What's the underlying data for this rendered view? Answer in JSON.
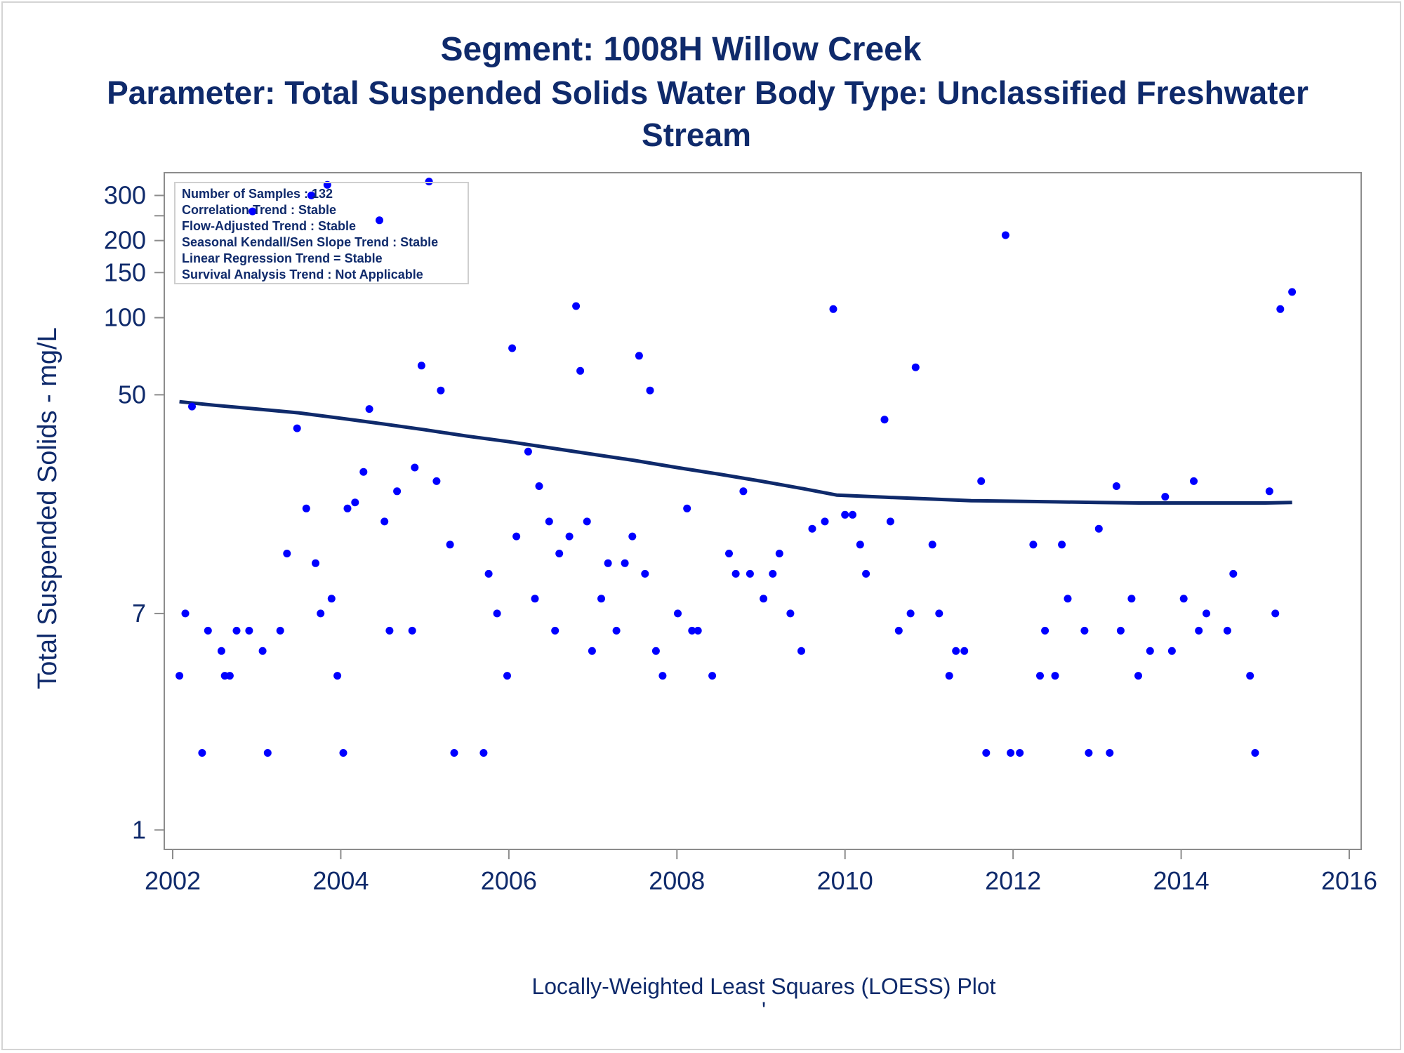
{
  "title_line1": "Segment: 1008H  Willow Creek",
  "title_line2": "Parameter: Total Suspended Solids   Water Body Type: Unclassified Freshwater",
  "title_line3": "Stream",
  "footnote": "Locally-Weighted Least Squares (LOESS) Plot",
  "footnote_mark": "'",
  "info_box": [
    "Number of Samples : 132",
    "Correlation Trend : Stable",
    "Flow-Adjusted Trend : Stable",
    "Seasonal Kendall/Sen Slope Trend : Stable",
    "Linear Regression Trend = Stable",
    "Survival Analysis Trend : Not Applicable"
  ],
  "colors": {
    "text": "#0f2a6b",
    "points": "#0000ff",
    "line": "#0f2a6b",
    "axis": "#8c8c8c"
  },
  "chart_data": {
    "type": "scatter",
    "ylabel": "Total Suspended Solids - mg/L",
    "xlabel": "",
    "y_scale": "log",
    "xlim": [
      2002,
      2016
    ],
    "ylim": [
      0.9,
      350
    ],
    "x_ticks": [
      2002,
      2004,
      2006,
      2008,
      2010,
      2012,
      2014,
      2016
    ],
    "x_tick_labels": [
      "2002",
      "2004",
      "2006",
      "2008",
      "2010",
      "2012",
      "2014",
      "2016"
    ],
    "y_ticks": [
      1,
      7,
      50,
      100,
      150,
      200,
      300
    ],
    "y_tick_labels": [
      "1",
      "7",
      "50",
      "100",
      "150",
      "200",
      "300"
    ],
    "y_minor_ticks": [
      250
    ],
    "series": [
      {
        "kind": "points",
        "points": [
          [
            2002.08,
            4
          ],
          [
            2002.15,
            7
          ],
          [
            2002.23,
            45
          ],
          [
            2002.35,
            2
          ],
          [
            2002.42,
            6
          ],
          [
            2002.58,
            5
          ],
          [
            2002.62,
            4
          ],
          [
            2002.68,
            4
          ],
          [
            2002.76,
            6
          ],
          [
            2002.91,
            6
          ],
          [
            2002.95,
            260
          ],
          [
            2003.07,
            5
          ],
          [
            2003.13,
            2
          ],
          [
            2003.28,
            6
          ],
          [
            2003.36,
            12
          ],
          [
            2003.48,
            37
          ],
          [
            2003.59,
            18
          ],
          [
            2003.65,
            300
          ],
          [
            2003.7,
            11
          ],
          [
            2003.76,
            7
          ],
          [
            2003.84,
            330
          ],
          [
            2003.89,
            8
          ],
          [
            2003.96,
            4
          ],
          [
            2004.03,
            2
          ],
          [
            2004.08,
            18
          ],
          [
            2004.17,
            19
          ],
          [
            2004.27,
            25
          ],
          [
            2004.34,
            44
          ],
          [
            2004.46,
            240
          ],
          [
            2004.52,
            16
          ],
          [
            2004.58,
            6
          ],
          [
            2004.67,
            21
          ],
          [
            2004.85,
            6
          ],
          [
            2004.88,
            26
          ],
          [
            2004.96,
            65
          ],
          [
            2005.05,
            340
          ],
          [
            2005.14,
            23
          ],
          [
            2005.19,
            52
          ],
          [
            2005.3,
            13
          ],
          [
            2005.35,
            2
          ],
          [
            2005.7,
            2
          ],
          [
            2005.76,
            10
          ],
          [
            2005.86,
            7
          ],
          [
            2005.98,
            4
          ],
          [
            2006.04,
            76
          ],
          [
            2006.09,
            14
          ],
          [
            2006.23,
            30
          ],
          [
            2006.31,
            8
          ],
          [
            2006.36,
            22
          ],
          [
            2006.48,
            16
          ],
          [
            2006.55,
            6
          ],
          [
            2006.6,
            12
          ],
          [
            2006.72,
            14
          ],
          [
            2006.8,
            111
          ],
          [
            2006.85,
            62
          ],
          [
            2006.93,
            16
          ],
          [
            2006.99,
            5
          ],
          [
            2007.1,
            8
          ],
          [
            2007.18,
            11
          ],
          [
            2007.28,
            6
          ],
          [
            2007.38,
            11
          ],
          [
            2007.47,
            14
          ],
          [
            2007.55,
            71
          ],
          [
            2007.62,
            10
          ],
          [
            2007.68,
            52
          ],
          [
            2007.75,
            5
          ],
          [
            2007.83,
            4
          ],
          [
            2008.01,
            7
          ],
          [
            2008.12,
            18
          ],
          [
            2008.18,
            6
          ],
          [
            2008.25,
            6
          ],
          [
            2008.42,
            4
          ],
          [
            2008.62,
            12
          ],
          [
            2008.7,
            10
          ],
          [
            2008.79,
            21
          ],
          [
            2008.87,
            10
          ],
          [
            2009.03,
            8
          ],
          [
            2009.14,
            10
          ],
          [
            2009.22,
            12
          ],
          [
            2009.35,
            7
          ],
          [
            2009.48,
            5
          ],
          [
            2009.61,
            15
          ],
          [
            2009.76,
            16
          ],
          [
            2009.86,
            108
          ],
          [
            2010.0,
            17
          ],
          [
            2010.09,
            17
          ],
          [
            2010.18,
            13
          ],
          [
            2010.25,
            10
          ],
          [
            2010.47,
            40
          ],
          [
            2010.54,
            16
          ],
          [
            2010.64,
            6
          ],
          [
            2010.78,
            7
          ],
          [
            2010.84,
            64
          ],
          [
            2011.04,
            13
          ],
          [
            2011.12,
            7
          ],
          [
            2011.24,
            4
          ],
          [
            2011.32,
            5
          ],
          [
            2011.42,
            5
          ],
          [
            2011.62,
            23
          ],
          [
            2011.68,
            2
          ],
          [
            2011.91,
            210
          ],
          [
            2011.97,
            2
          ],
          [
            2012.08,
            2
          ],
          [
            2012.24,
            13
          ],
          [
            2012.32,
            4
          ],
          [
            2012.38,
            6
          ],
          [
            2012.5,
            4
          ],
          [
            2012.58,
            13
          ],
          [
            2012.65,
            8
          ],
          [
            2012.85,
            6
          ],
          [
            2012.9,
            2
          ],
          [
            2013.02,
            15
          ],
          [
            2013.15,
            2
          ],
          [
            2013.23,
            22
          ],
          [
            2013.28,
            6
          ],
          [
            2013.41,
            8
          ],
          [
            2013.49,
            4
          ],
          [
            2013.63,
            5
          ],
          [
            2013.81,
            20
          ],
          [
            2013.89,
            5
          ],
          [
            2014.03,
            8
          ],
          [
            2014.15,
            23
          ],
          [
            2014.21,
            6
          ],
          [
            2014.3,
            7
          ],
          [
            2014.55,
            6
          ],
          [
            2014.62,
            10
          ],
          [
            2014.82,
            4
          ],
          [
            2014.88,
            2
          ],
          [
            2015.05,
            21
          ],
          [
            2015.12,
            7
          ],
          [
            2015.18,
            108
          ],
          [
            2015.32,
            126
          ]
        ]
      },
      {
        "kind": "loess_line",
        "points": [
          [
            2002.08,
            47
          ],
          [
            2002.5,
            45.5
          ],
          [
            2003.0,
            44
          ],
          [
            2003.5,
            42.5
          ],
          [
            2004.0,
            40.5
          ],
          [
            2004.5,
            38.5
          ],
          [
            2005.0,
            36.5
          ],
          [
            2005.5,
            34.5
          ],
          [
            2006.0,
            32.8
          ],
          [
            2006.5,
            31
          ],
          [
            2007.0,
            29.3
          ],
          [
            2007.5,
            27.7
          ],
          [
            2008.0,
            26
          ],
          [
            2008.5,
            24.5
          ],
          [
            2009.0,
            23
          ],
          [
            2009.5,
            21.5
          ],
          [
            2009.9,
            20.3
          ],
          [
            2010.5,
            19.9
          ],
          [
            2011.0,
            19.6
          ],
          [
            2011.5,
            19.3
          ],
          [
            2012.0,
            19.2
          ],
          [
            2012.5,
            19.1
          ],
          [
            2013.0,
            19.0
          ],
          [
            2013.5,
            18.9
          ],
          [
            2014.0,
            18.9
          ],
          [
            2014.5,
            18.9
          ],
          [
            2015.0,
            18.9
          ],
          [
            2015.32,
            19.0
          ]
        ]
      }
    ]
  }
}
